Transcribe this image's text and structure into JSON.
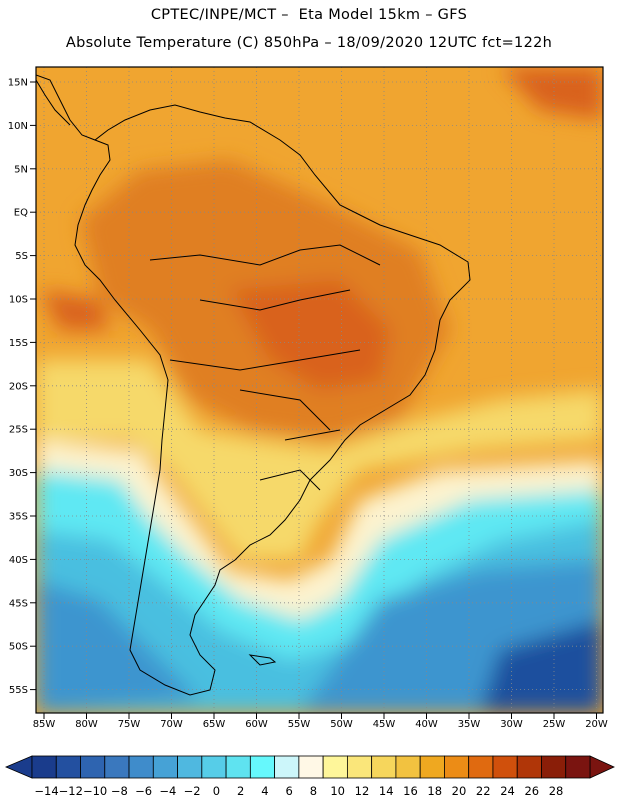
{
  "header": {
    "line1": "CPTEC/INPE/MCT –  Eta Model 15km – GFS",
    "line2": "Absolute Temperature (C) 850hPa – 18/09/2020 12UTC fct=122h"
  },
  "lat_labels": [
    "15N",
    "10N",
    "5N",
    "EQ",
    "5S",
    "10S",
    "15S",
    "20S",
    "25S",
    "30S",
    "35S",
    "40S",
    "45S",
    "50S",
    "55S"
  ],
  "lon_labels": [
    "85W",
    "80W",
    "75W",
    "70W",
    "65W",
    "60W",
    "55W",
    "50W",
    "45W",
    "40W",
    "35W",
    "30W",
    "25W",
    "20W"
  ],
  "colorbar": {
    "labels": [
      "-14",
      "-12",
      "-10",
      "-8",
      "-6",
      "-4",
      "-2",
      "0",
      "2",
      "4",
      "6",
      "8",
      "10",
      "12",
      "14",
      "16",
      "18",
      "20",
      "22",
      "24",
      "26",
      "28"
    ],
    "colors": [
      "#1a3c8c",
      "#2350a0",
      "#2e64b0",
      "#3a78be",
      "#3f8ccb",
      "#46a2d6",
      "#4fb8e0",
      "#56cde8",
      "#5fe3f0",
      "#66f8fc",
      "#ccf6fa",
      "#fff8e6",
      "#fef69a",
      "#fae67a",
      "#f6d65c",
      "#f2c240",
      "#efa820",
      "#ec8c16",
      "#e06a10",
      "#d0500c",
      "#b03608",
      "#8a1e08",
      "#7a1410"
    ]
  },
  "palette": {
    "warm_high": "#d9621b",
    "warm_mid": "#ef9b2c",
    "warm_low": "#f2b43a",
    "yellow": "#f6d96a",
    "pale": "#fdf5d8",
    "cyan": "#5fe8f3",
    "cyan_mid": "#49bfe0",
    "blue": "#3c95cf",
    "deep_blue": "#1f4f9e"
  }
}
